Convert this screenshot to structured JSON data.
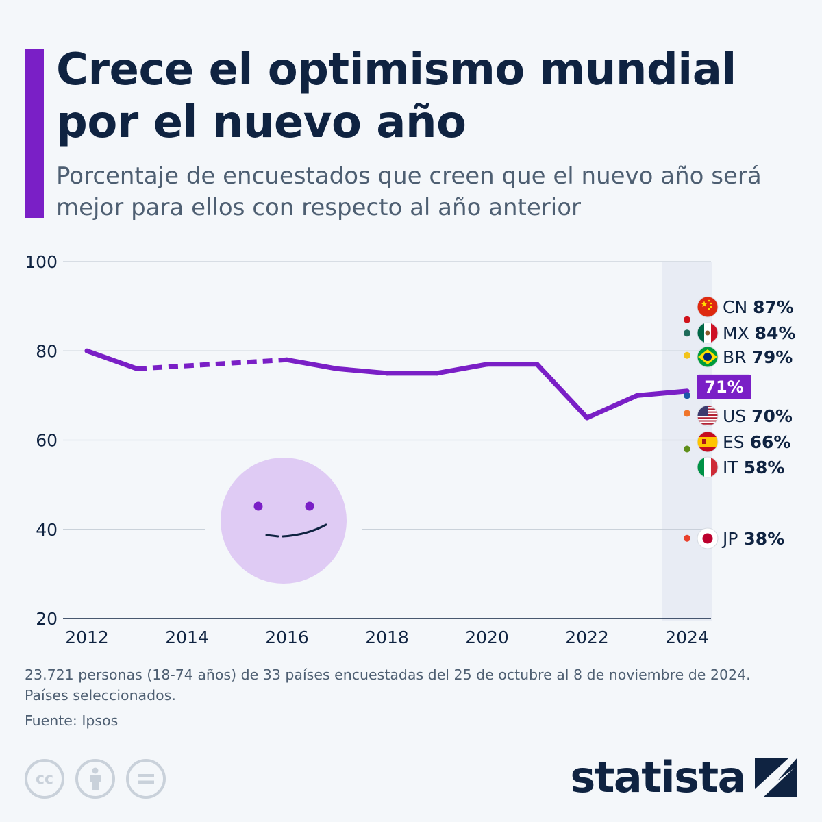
{
  "header": {
    "title": "Crece el optimismo mundial por el nuevo año",
    "subtitle": "Porcentaje de encuestados que creen que el nuevo año será mejor para ellos con respecto al año anterior"
  },
  "chart_data": {
    "type": "line",
    "title": "",
    "xlabel": "",
    "ylabel": "",
    "xlim": [
      2012,
      2024
    ],
    "ylim": [
      20,
      100
    ],
    "y_ticks": [
      100,
      80,
      60,
      40,
      20
    ],
    "x_ticks": [
      2012,
      2014,
      2016,
      2018,
      2020,
      2022,
      2024
    ],
    "grid": "horizontal",
    "highlight_year": 2024,
    "series": [
      {
        "color": "#7a1fc6",
        "points": [
          {
            "x": 2012,
            "y": 80
          },
          {
            "x": 2013,
            "y": 76
          },
          {
            "x": 2016,
            "y": 78
          },
          {
            "x": 2017,
            "y": 76
          },
          {
            "x": 2018,
            "y": 75
          },
          {
            "x": 2019,
            "y": 75
          },
          {
            "x": 2020,
            "y": 77
          },
          {
            "x": 2021,
            "y": 77
          },
          {
            "x": 2022,
            "y": 65
          },
          {
            "x": 2023,
            "y": 70
          },
          {
            "x": 2024,
            "y": 71
          }
        ],
        "dashed_from": 2013,
        "dashed_to": 2016
      }
    ],
    "end_label": "71%",
    "countries": [
      {
        "code": "CN",
        "value": 87,
        "label": "87%",
        "dot_color": "#d0121b",
        "flag": "cn"
      },
      {
        "code": "MX",
        "value": 84,
        "label": "84%",
        "dot_color": "#1f6b5a",
        "flag": "mx"
      },
      {
        "code": "BR",
        "value": 79,
        "label": "79%",
        "dot_color": "#f2c41c",
        "flag": "br"
      },
      {
        "code": "US",
        "value": 70,
        "label": "70%",
        "dot_color": "#1c58a8",
        "flag": "us"
      },
      {
        "code": "ES",
        "value": 66,
        "label": "66%",
        "dot_color": "#f0752a",
        "flag": "es"
      },
      {
        "code": "IT",
        "value": 58,
        "label": "58%",
        "dot_color": "#5f8f1a",
        "flag": "it"
      },
      {
        "code": "JP",
        "value": 38,
        "label": "38%",
        "dot_color": "#e9412c",
        "flag": "jp"
      }
    ]
  },
  "footer": {
    "note_line1": "23.721 personas (18-74 años) de 33 países encuestadas del 25 de octubre al 8 de noviembre de 2024.",
    "note_line2": "Países seleccionados.",
    "source": "Fuente: Ipsos",
    "brand": "statista",
    "license_icons": [
      "cc-icon",
      "attribution-icon",
      "no-derivatives-icon"
    ]
  }
}
